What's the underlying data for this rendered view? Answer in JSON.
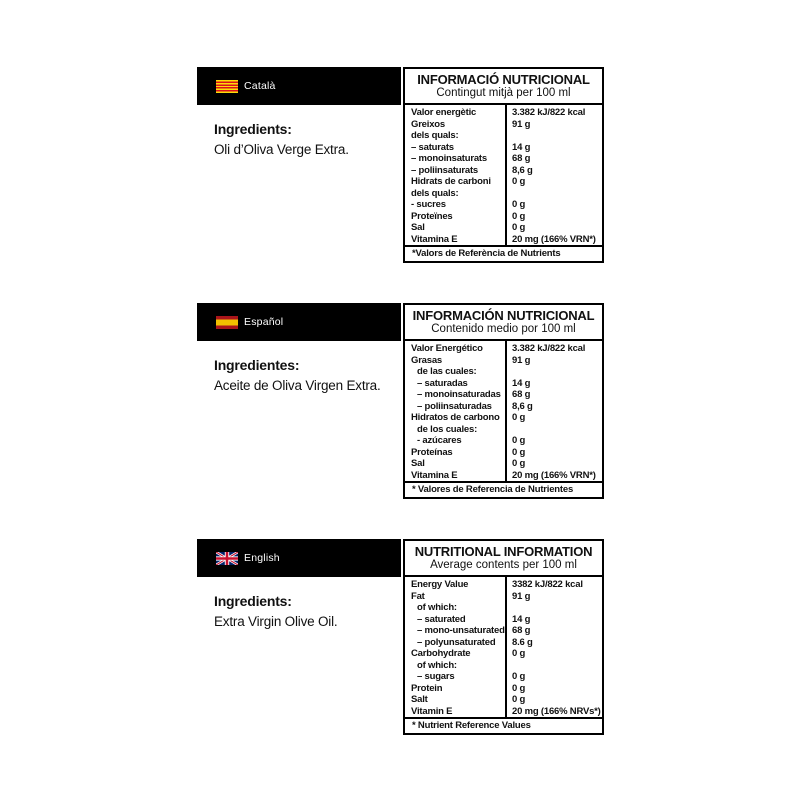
{
  "colors": {
    "bar_background": "#000000",
    "table_border": "#000000",
    "text": "#111111",
    "bar_text": "#ffffff",
    "catalonia_flag_yellow": "#fcdd09",
    "catalonia_flag_red": "#da121a",
    "spain_flag_red": "#aa151b",
    "spain_flag_yellow": "#f1bf00",
    "uk_flag_blue": "#012169",
    "uk_flag_red": "#c8102e"
  },
  "labels": [
    {
      "language": "Català",
      "flag": "catalonia",
      "ingredients": {
        "heading": "Ingredients:",
        "text": "Oli d’Oliva Verge Extra."
      },
      "table": {
        "title": "INFORMACIÓ NUTRICIONAL",
        "subtitle": "Contingut mitjà per 100 ml",
        "rows": [
          {
            "name": "Valor energètic",
            "value": "3.382 kJ/822 kcal",
            "indent": false
          },
          {
            "name": "Greixos",
            "value": "91 g",
            "indent": false
          },
          {
            "name": "dels quals:",
            "value": "",
            "indent": false
          },
          {
            "name": "– saturats",
            "value": "14 g",
            "indent": false
          },
          {
            "name": "– monoinsaturats",
            "value": "68 g",
            "indent": false
          },
          {
            "name": "– poliinsaturats",
            "value": "8,6 g",
            "indent": false
          },
          {
            "name": "Hidrats de carboni",
            "value": "0 g",
            "indent": false
          },
          {
            "name": "dels quals:",
            "value": "",
            "indent": false
          },
          {
            "name": "- sucres",
            "value": "0 g",
            "indent": false
          },
          {
            "name": "Proteïnes",
            "value": "0 g",
            "indent": false
          },
          {
            "name": "Sal",
            "value": "0 g",
            "indent": false
          },
          {
            "name": "Vitamina E",
            "value": "20 mg (166% VRN*)",
            "indent": false
          }
        ],
        "footnote": "*Valors de Referència de Nutrients"
      }
    },
    {
      "language": "Español",
      "flag": "spain",
      "ingredients": {
        "heading": "Ingredientes:",
        "text": "Aceite de Oliva Virgen Extra."
      },
      "table": {
        "title": "INFORMACIÓN NUTRICIONAL",
        "subtitle": "Contenido medio por 100 ml",
        "rows": [
          {
            "name": "Valor Energético",
            "value": "3.382 kJ/822 kcal",
            "indent": false
          },
          {
            "name": "Grasas",
            "value": "91 g",
            "indent": false
          },
          {
            "name": "de las cuales:",
            "value": "",
            "indent": true
          },
          {
            "name": "– saturadas",
            "value": "14 g",
            "indent": true
          },
          {
            "name": "– monoinsaturadas",
            "value": "68 g",
            "indent": true
          },
          {
            "name": "– poliinsaturadas",
            "value": "8,6 g",
            "indent": true
          },
          {
            "name": "Hidratos de carbono",
            "value": "0 g",
            "indent": false
          },
          {
            "name": "de los cuales:",
            "value": "",
            "indent": true
          },
          {
            "name": "- azúcares",
            "value": "0 g",
            "indent": true
          },
          {
            "name": "Proteínas",
            "value": "0 g",
            "indent": false
          },
          {
            "name": "Sal",
            "value": "0 g",
            "indent": false
          },
          {
            "name": "Vitamina E",
            "value": "20 mg (166% VRN*)",
            "indent": false
          }
        ],
        "footnote": "* Valores de Referencia de Nutrientes"
      }
    },
    {
      "language": "English",
      "flag": "uk",
      "ingredients": {
        "heading": "Ingredients:",
        "text": "Extra Virgin Olive Oil."
      },
      "table": {
        "title": "NUTRITIONAL INFORMATION",
        "subtitle": "Average contents per 100 ml",
        "rows": [
          {
            "name": "Energy Value",
            "value": "3382 kJ/822 kcal",
            "indent": false
          },
          {
            "name": "Fat",
            "value": "91 g",
            "indent": false
          },
          {
            "name": "of which:",
            "value": "",
            "indent": true
          },
          {
            "name": "– saturated",
            "value": "14 g",
            "indent": true
          },
          {
            "name": "– mono-unsaturated",
            "value": "68 g",
            "indent": true
          },
          {
            "name": "– polyunsaturated",
            "value": "8.6 g",
            "indent": true
          },
          {
            "name": "Carbohydrate",
            "value": "0 g",
            "indent": false
          },
          {
            "name": "of which:",
            "value": "",
            "indent": true
          },
          {
            "name": "– sugars",
            "value": "0 g",
            "indent": true
          },
          {
            "name": "Protein",
            "value": "0 g",
            "indent": false
          },
          {
            "name": "Salt",
            "value": "0 g",
            "indent": false
          },
          {
            "name": "Vitamin E",
            "value": "20 mg (166% NRVs*)",
            "indent": false
          }
        ],
        "footnote": "* Nutrient Reference Values"
      }
    }
  ]
}
